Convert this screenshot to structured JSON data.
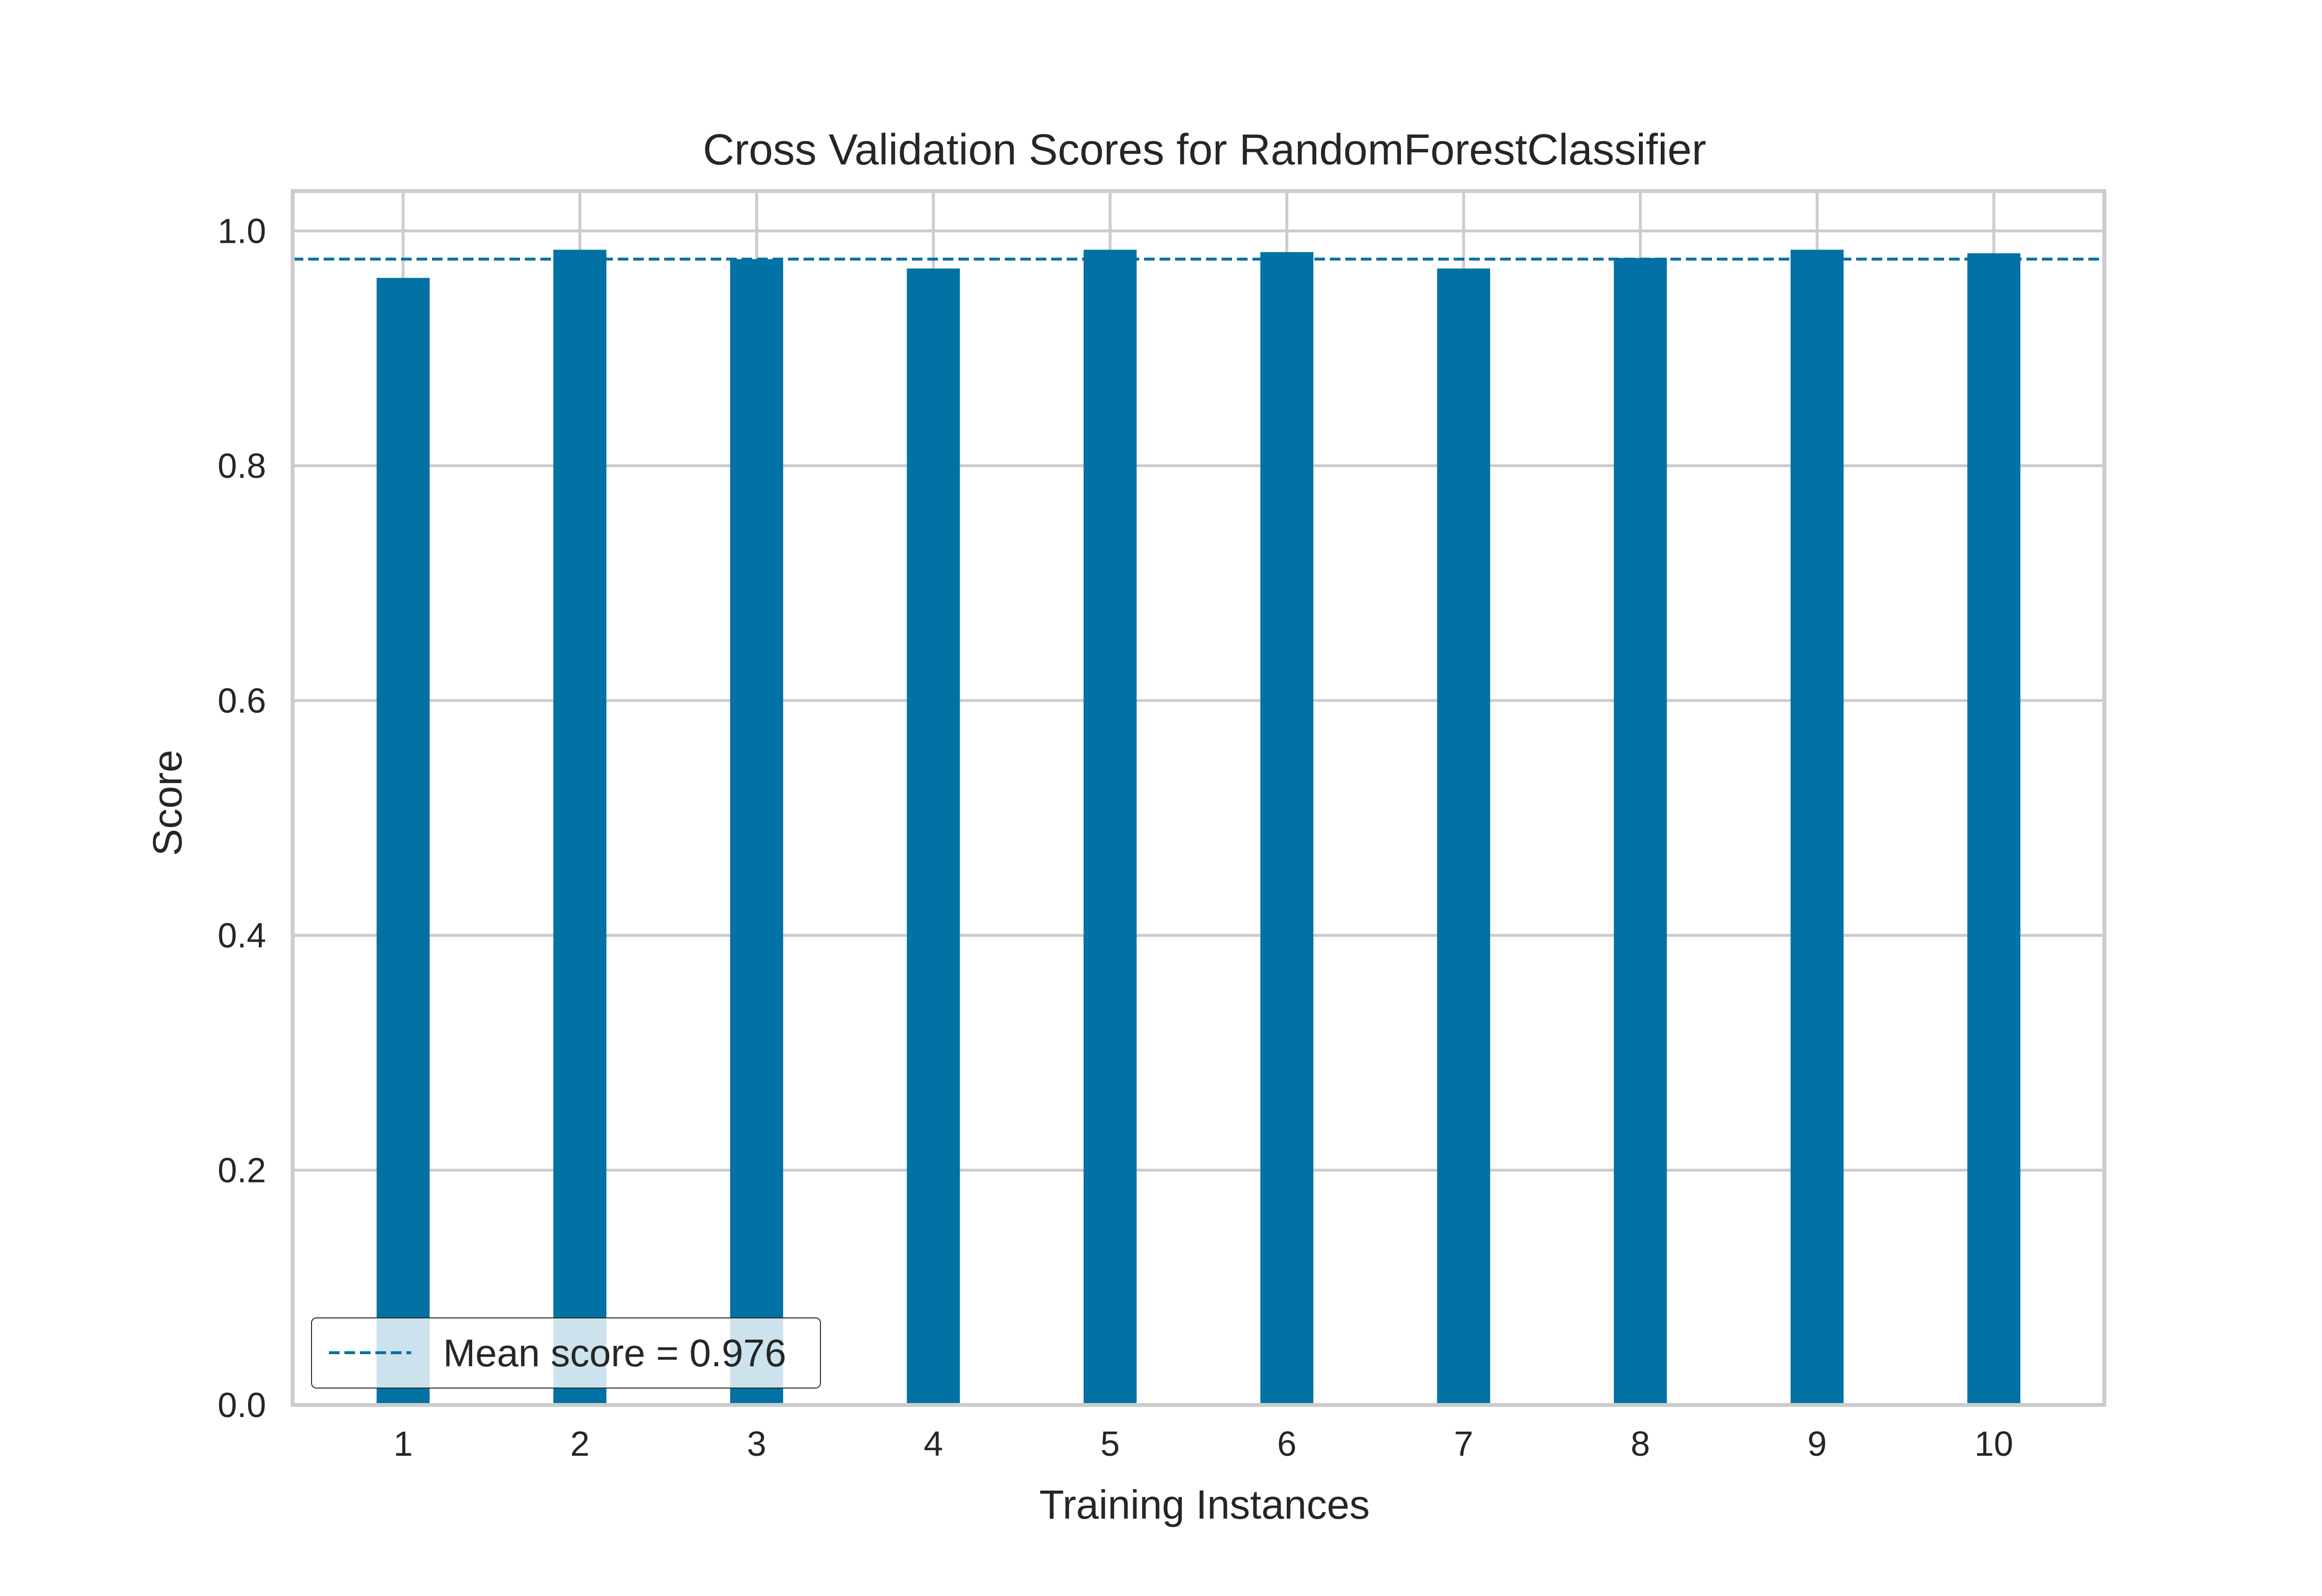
{
  "chart_data": {
    "type": "bar",
    "title": "Cross Validation Scores for RandomForestClassifier",
    "xlabel": "Training Instances",
    "ylabel": "Score",
    "categories": [
      "1",
      "2",
      "3",
      "4",
      "5",
      "6",
      "7",
      "8",
      "9",
      "10"
    ],
    "values": [
      0.96,
      0.984,
      0.976,
      0.968,
      0.984,
      0.982,
      0.968,
      0.977,
      0.984,
      0.981
    ],
    "ylim": [
      0,
      1.0
    ],
    "yticks": [
      "0.0",
      "0.2",
      "0.4",
      "0.6",
      "0.8",
      "1.0"
    ],
    "mean_line": {
      "value": 0.976,
      "style": "dashed"
    },
    "legend": {
      "label": "Mean score = 0.976",
      "position": "lower-left"
    },
    "grid": true,
    "colors": {
      "bar": "#0271a4",
      "mean_line": "#0271a4",
      "grid": "#cccccc",
      "axes_border": "#cccccc",
      "text": "#262626"
    }
  }
}
